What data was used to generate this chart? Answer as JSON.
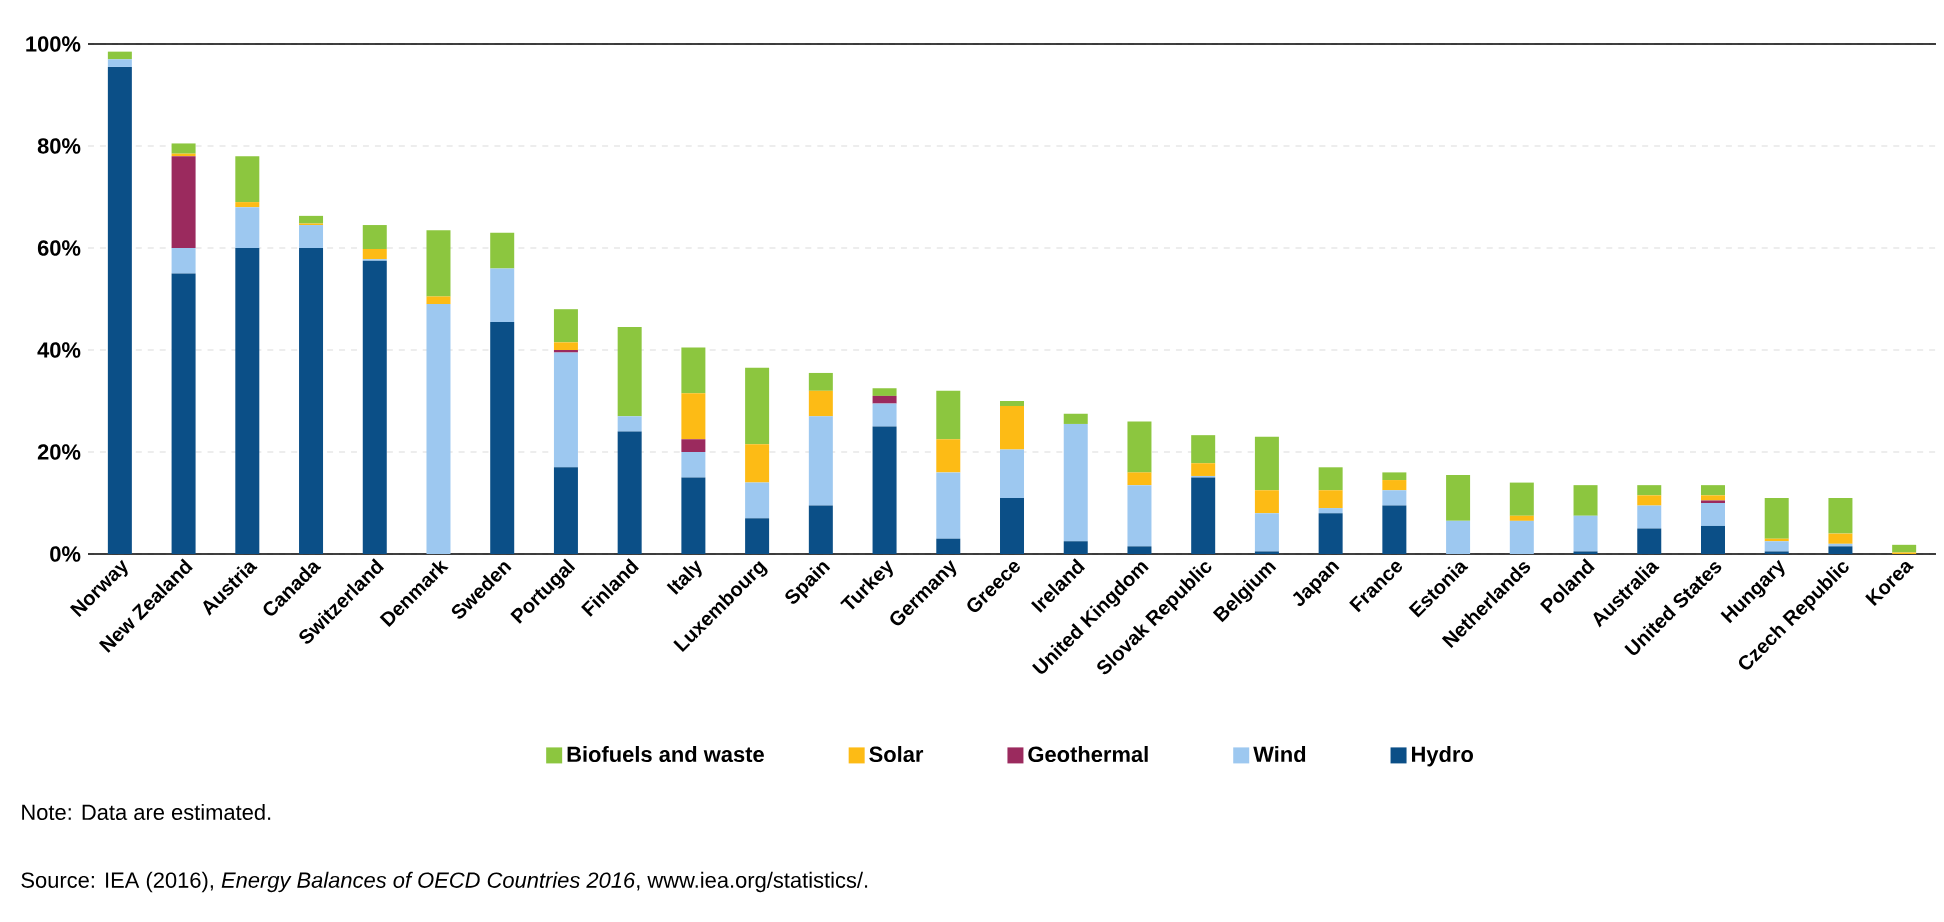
{
  "chart_data": {
    "type": "bar",
    "stacked": true,
    "categories": [
      "Norway",
      "New Zealand",
      "Austria",
      "Canada",
      "Switzerland",
      "Denmark",
      "Sweden",
      "Portugal",
      "Finland",
      "Italy",
      "Luxembourg",
      "Spain",
      "Turkey",
      "Germany",
      "Greece",
      "Ireland",
      "United Kingdom",
      "Slovak Republic",
      "Belgium",
      "Japan",
      "France",
      "Estonia",
      "Netherlands",
      "Poland",
      "Australia",
      "United States",
      "Hungary",
      "Czech Republic",
      "Korea"
    ],
    "series": [
      {
        "name": "Hydro",
        "color": "#0b4f87",
        "values": [
          95.5,
          55,
          60,
          60,
          57.5,
          0,
          45.5,
          17,
          24,
          15,
          7,
          9.5,
          25,
          3,
          11,
          2.5,
          1.5,
          15,
          0.5,
          8,
          9.5,
          0,
          0,
          0.5,
          5,
          5.5,
          0.5,
          1.5,
          0
        ]
      },
      {
        "name": "Wind",
        "color": "#9dc8f0",
        "values": [
          1.5,
          5,
          8,
          4.5,
          0.3,
          49,
          10.5,
          22.5,
          3,
          5,
          7,
          17.5,
          4.5,
          13,
          9.5,
          23,
          12,
          0.3,
          7.5,
          1,
          3,
          6.5,
          6.5,
          7,
          4.5,
          4.5,
          2,
          0.5,
          0
        ]
      },
      {
        "name": "Geothermal",
        "color": "#9b2a5e",
        "values": [
          0,
          18,
          0,
          0,
          0,
          0,
          0,
          0.5,
          0,
          2.5,
          0,
          0,
          1.5,
          0,
          0,
          0,
          0,
          0,
          0,
          0,
          0,
          0,
          0,
          0,
          0,
          0.5,
          0,
          0,
          0
        ]
      },
      {
        "name": "Solar",
        "color": "#fdbb15",
        "values": [
          0,
          0.5,
          1,
          0.3,
          2,
          1.5,
          0,
          1.5,
          0,
          9,
          7.5,
          5,
          0,
          6.5,
          8.5,
          0,
          2.5,
          2.5,
          4.5,
          3.5,
          2,
          0,
          1,
          0,
          2,
          1,
          0.5,
          2,
          0.3
        ]
      },
      {
        "name": "Biofuels and waste",
        "color": "#8cc63f",
        "values": [
          1.5,
          2,
          9,
          1.5,
          4.7,
          13,
          7,
          6.5,
          17.5,
          9,
          15,
          3.5,
          1.5,
          9.5,
          1,
          2,
          10,
          5.5,
          10.5,
          4.5,
          1.5,
          9,
          6.5,
          6,
          2,
          2,
          8,
          7,
          1.5
        ]
      }
    ],
    "ylim": [
      0,
      100
    ],
    "yticks": [
      {
        "value": 0,
        "label": "0%"
      },
      {
        "value": 20,
        "label": "20%"
      },
      {
        "value": 40,
        "label": "40%"
      },
      {
        "value": 60,
        "label": "60%"
      },
      {
        "value": 80,
        "label": "80%"
      },
      {
        "value": 100,
        "label": "100%"
      }
    ],
    "grid": "y",
    "legend": "bottom",
    "annotations": [
      "Note: Data are estimated.",
      "Source: IEA (2016), *Energy Balances of OECD Countries 2016*, www.iea.org/statistics/."
    ]
  }
}
